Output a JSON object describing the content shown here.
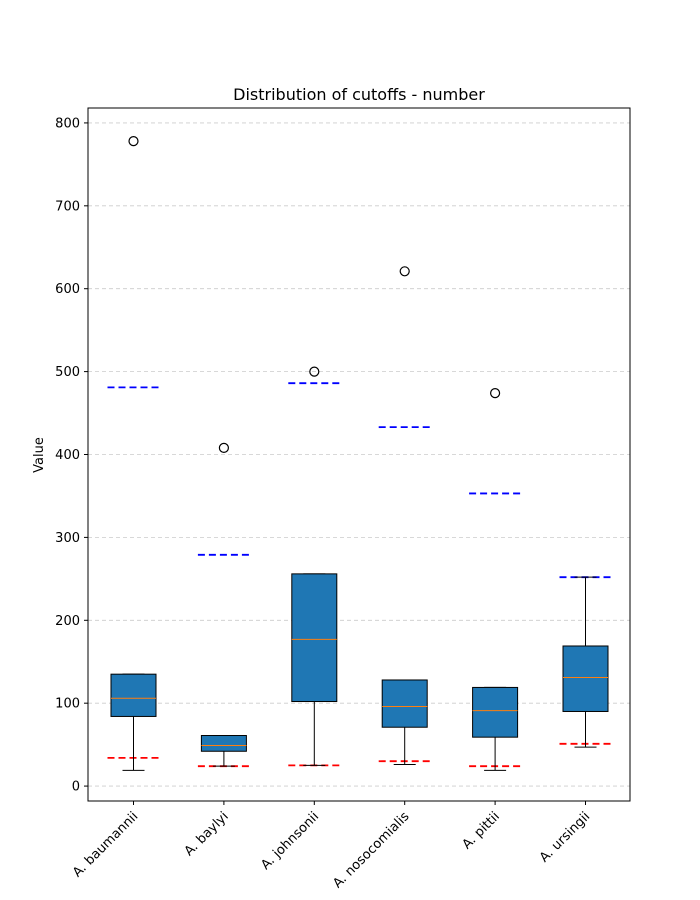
{
  "chart_data": {
    "type": "box",
    "title": "Distribution of cutoffs - number",
    "xlabel": "",
    "ylabel": "Value",
    "ylim": [
      -18,
      818
    ],
    "yticks": [
      0,
      100,
      200,
      300,
      400,
      500,
      600,
      700,
      800
    ],
    "grid": "y-dashed",
    "categories": [
      "A. baumannii",
      "A. baylyi",
      "A. johnsonii",
      "A. nosocomialis",
      "A. pittii",
      "A. ursingii"
    ],
    "boxes": [
      {
        "category": "A. baumannii",
        "whisker_low": 19,
        "q1": 84,
        "median": 106,
        "q3": 135,
        "whisker_high": 135,
        "outliers": [
          778
        ]
      },
      {
        "category": "A. baylyi",
        "whisker_low": 24,
        "q1": 42,
        "median": 49,
        "q3": 61,
        "whisker_high": 61,
        "outliers": [
          408
        ]
      },
      {
        "category": "A. johnsonii",
        "whisker_low": 25,
        "q1": 102,
        "median": 177,
        "q3": 256,
        "whisker_high": 256,
        "outliers": [
          500
        ]
      },
      {
        "category": "A. nosocomialis",
        "whisker_low": 26,
        "q1": 71,
        "median": 96,
        "q3": 128,
        "whisker_high": 128,
        "outliers": [
          621
        ]
      },
      {
        "category": "A. pittii",
        "whisker_low": 19,
        "q1": 59,
        "median": 91,
        "q3": 119,
        "whisker_high": 119,
        "outliers": [
          474
        ]
      },
      {
        "category": "A. ursingii",
        "whisker_low": 47,
        "q1": 90,
        "median": 131,
        "q3": 169,
        "whisker_high": 252,
        "outliers": []
      }
    ],
    "reference_lines": {
      "lower": {
        "color": "#ff0000",
        "values": [
          34,
          24,
          25,
          30,
          24,
          51
        ]
      },
      "upper": {
        "color": "#0000ff",
        "values": [
          481,
          279,
          486,
          433,
          353,
          252
        ]
      }
    },
    "colors": {
      "box_fill": "#1f77b4",
      "median": "#ff7f0e",
      "grid": "#cccccc"
    }
  }
}
